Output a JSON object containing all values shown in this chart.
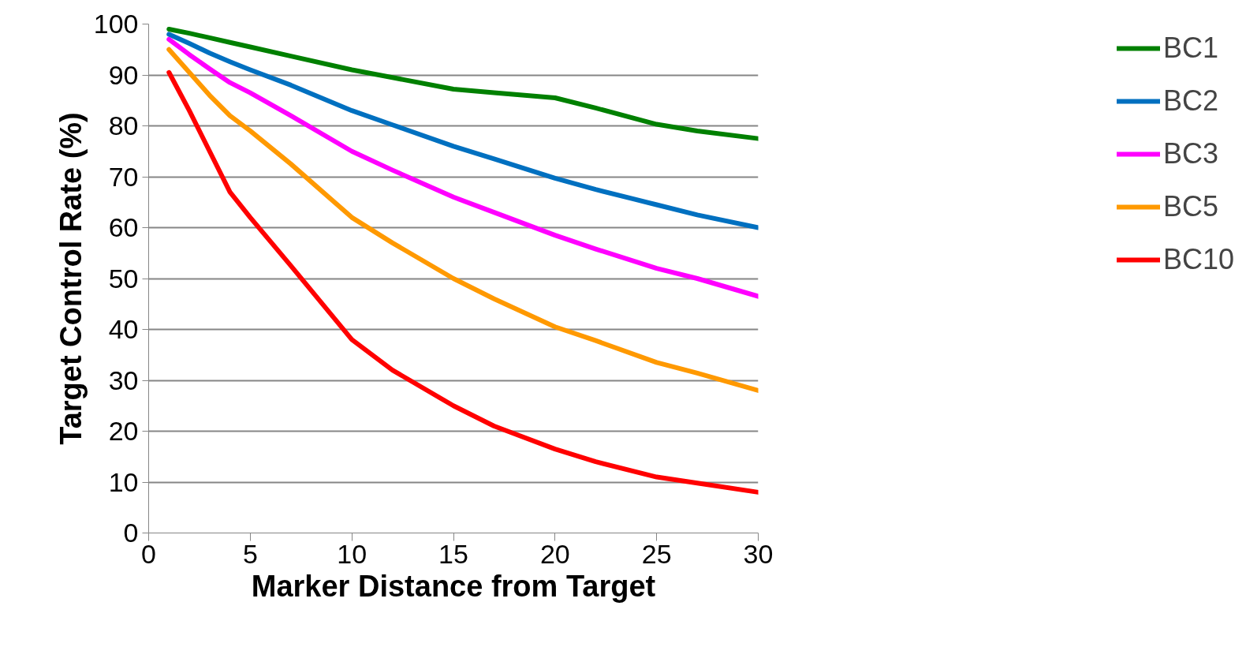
{
  "chart_data": {
    "type": "line",
    "xlabel": "Marker Distance from Target",
    "ylabel": "Target Control Rate (%)",
    "x": [
      1,
      2,
      3,
      4,
      5,
      7,
      10,
      12,
      15,
      17,
      20,
      22,
      25,
      27,
      30
    ],
    "series": [
      {
        "name": "BC1",
        "color": "#008000",
        "values": [
          99,
          98.2,
          97.3,
          96.4,
          95.5,
          93.7,
          91,
          89.5,
          87.2,
          86.5,
          85.5,
          83.5,
          80.3,
          79,
          77.5
        ]
      },
      {
        "name": "BC2",
        "color": "#0070c0",
        "values": [
          98,
          96.2,
          94.3,
          92.6,
          91,
          88,
          83,
          80.2,
          76,
          73.5,
          69.7,
          67.5,
          64.5,
          62.5,
          60
        ]
      },
      {
        "name": "BC3",
        "color": "#ff00ff",
        "values": [
          97,
          94,
          91.2,
          88.5,
          86.5,
          82,
          75,
          71.3,
          66,
          63,
          58.5,
          55.8,
          52,
          50,
          46.5
        ]
      },
      {
        "name": "BC5",
        "color": "#ff9900",
        "values": [
          95,
          90.5,
          86,
          82,
          79,
          72.5,
          62,
          57,
          50,
          46,
          40.5,
          37.8,
          33.5,
          31.4,
          28
        ]
      },
      {
        "name": "BC10",
        "color": "#ff0000",
        "values": [
          90.5,
          83,
          75,
          67,
          62,
          52.5,
          38,
          32,
          25,
          21,
          16.5,
          14,
          11,
          9.8,
          8
        ]
      }
    ],
    "xlim": [
      0,
      30
    ],
    "xticks": [
      0,
      5,
      10,
      15,
      20,
      25,
      30
    ],
    "ylim": [
      0,
      100
    ],
    "yticks": [
      0,
      10,
      20,
      30,
      40,
      50,
      60,
      70,
      80,
      90,
      100
    ],
    "grid": "y",
    "legend": "right",
    "marker": "none",
    "line_style": "solid"
  }
}
